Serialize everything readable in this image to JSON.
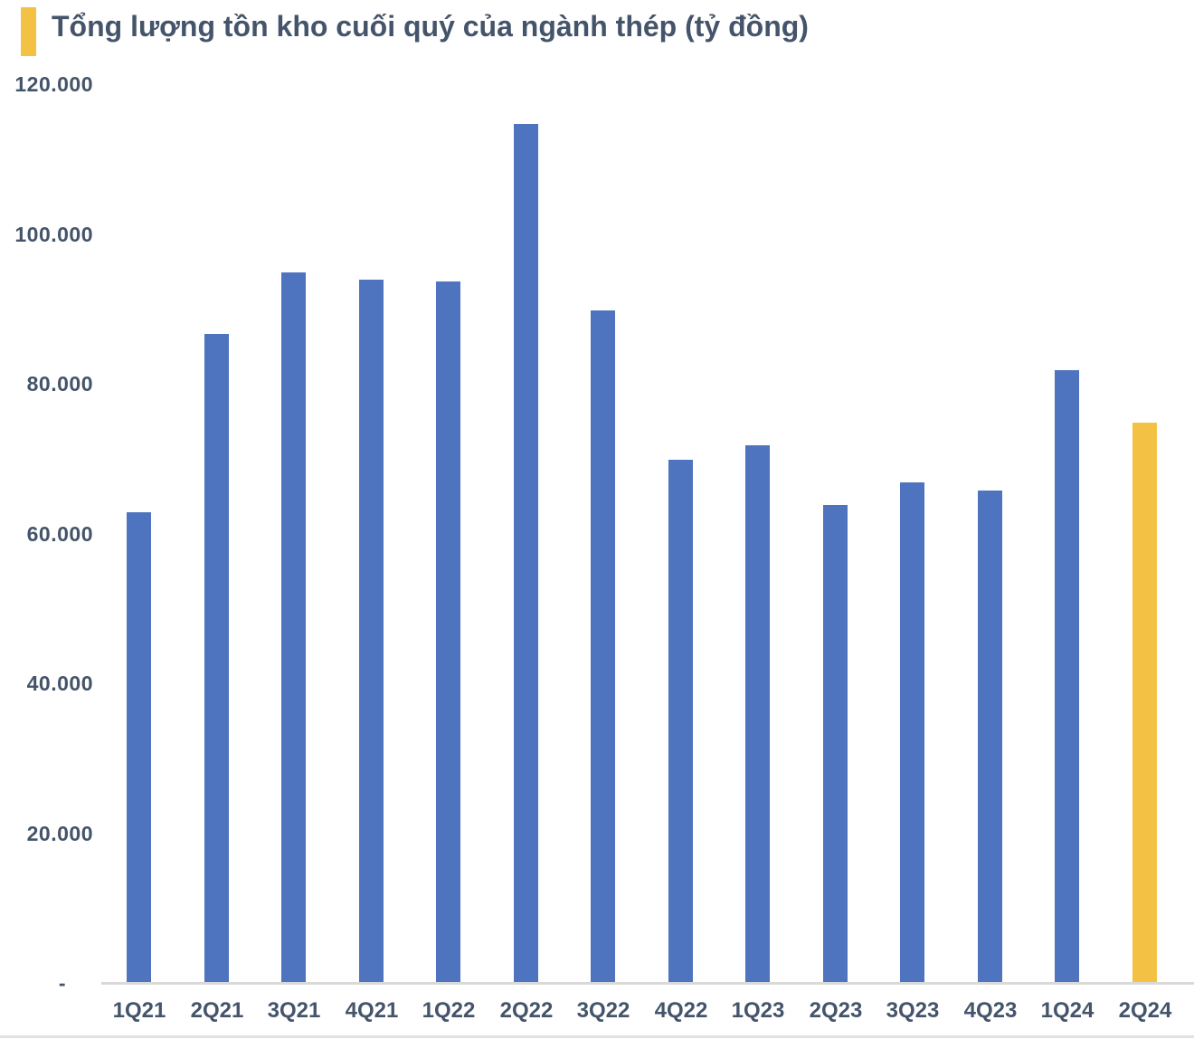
{
  "colors": {
    "background": "#FFFFFF",
    "bar": "#4E73BF",
    "bar_highlight": "#F3C245",
    "accent_bar": "#F3C245",
    "title_text": "#44546A",
    "axis_text": "#44546A",
    "axis_line": "#D9D9D9",
    "separator_line": "#E2E2E2"
  },
  "chart_data": {
    "type": "bar",
    "title": "Tổng lượng tồn kho cuối quý của ngành thép (tỷ đồng)",
    "categories": [
      "1Q21",
      "2Q21",
      "3Q21",
      "4Q21",
      "1Q22",
      "2Q22",
      "3Q22",
      "4Q22",
      "1Q23",
      "2Q23",
      "3Q23",
      "4Q23",
      "1Q24",
      "2Q24"
    ],
    "values": [
      62800,
      86700,
      94900,
      93900,
      93700,
      114700,
      89800,
      69800,
      71800,
      63800,
      66800,
      65800,
      81800,
      74800
    ],
    "highlight_category": "2Q24",
    "highlight_index": 13,
    "xlabel": "",
    "ylabel": "",
    "ylim": [
      0,
      120000
    ],
    "y_ticks": [
      {
        "label": "120.000",
        "value": 120000
      },
      {
        "label": "100.000",
        "value": 100000
      },
      {
        "label": "80.000",
        "value": 80000
      },
      {
        "label": "60.000",
        "value": 60000
      },
      {
        "label": "40.000",
        "value": 40000
      },
      {
        "label": "20.000",
        "value": 20000
      },
      {
        "label": "-",
        "value": 0
      }
    ],
    "grid": false,
    "legend_position": "none"
  }
}
